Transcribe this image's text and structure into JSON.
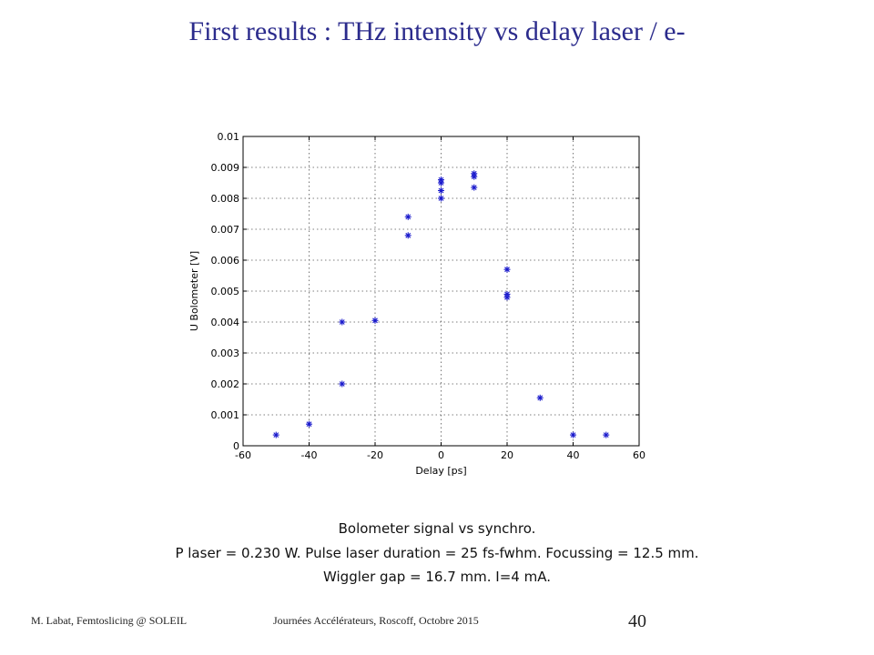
{
  "slide": {
    "title": "First results : THz intensity vs delay laser / e-",
    "caption_line1": "Bolometer  signal vs synchro.",
    "caption_line2": "P laser = 0.230 W. Pulse laser duration = 25 fs-fwhm. Focussing = 12.5 mm.",
    "caption_line3": "Wiggler gap = 16.7 mm. I=4 mA.",
    "footer_left": "M. Labat, Femtoslicing @ SOLEIL",
    "footer_center": "Journées Accélérateurs, Roscoff, Octobre 2015",
    "page_number": "40"
  },
  "chart_data": {
    "type": "scatter",
    "title": "",
    "xlabel": "Delay [ps]",
    "ylabel": "U Bolometer [V]",
    "xlim": [
      -60,
      60
    ],
    "ylim": [
      0,
      0.01
    ],
    "xticks": [
      "-60",
      "-40",
      "-20",
      "0",
      "20",
      "40",
      "60"
    ],
    "yticks": [
      "0",
      "0.001",
      "0.002",
      "0.003",
      "0.004",
      "0.005",
      "0.006",
      "0.007",
      "0.008",
      "0.009",
      "0.01"
    ],
    "grid": true,
    "marker": "asterisk",
    "marker_color": "#1a1acc",
    "series": [
      {
        "x": [
          -50,
          -40,
          -30,
          -30,
          -20,
          -10,
          -10,
          0,
          0,
          0,
          0,
          10,
          10,
          10,
          20,
          20,
          20,
          30,
          40,
          50
        ],
        "y": [
          0.00035,
          0.0007,
          0.002,
          0.004,
          0.00405,
          0.0068,
          0.0074,
          0.008,
          0.00825,
          0.0085,
          0.0086,
          0.00835,
          0.0087,
          0.0088,
          0.0057,
          0.0048,
          0.0049,
          0.00155,
          0.00035,
          0.00035
        ]
      }
    ]
  }
}
